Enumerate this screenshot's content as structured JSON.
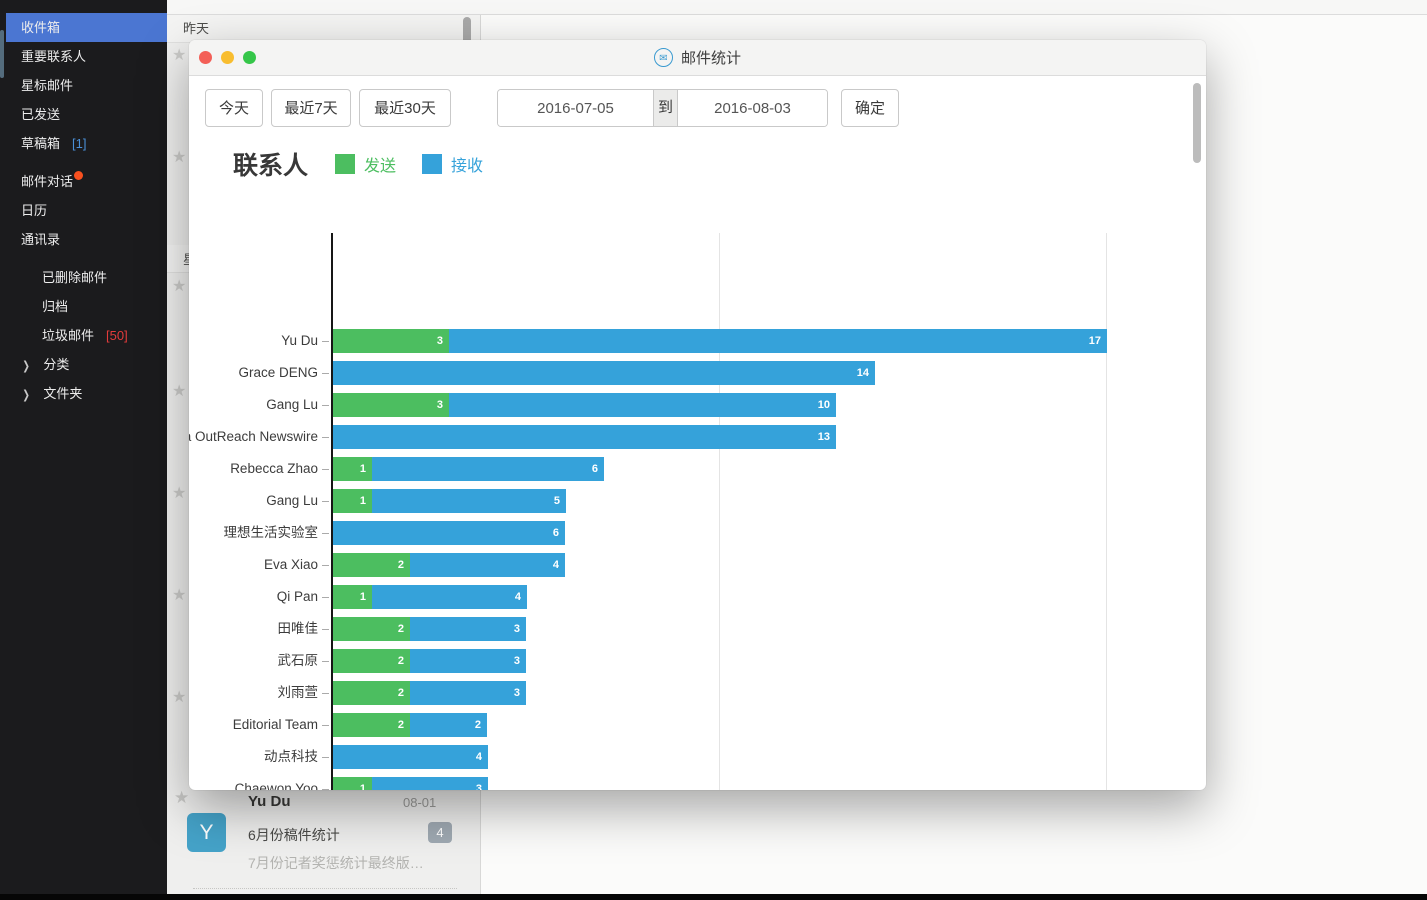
{
  "sidebar": {
    "selected_color": "#4B76D2",
    "groups": [
      {
        "items": [
          {
            "label": "收件箱",
            "selected": true
          },
          {
            "label": "重要联系人"
          },
          {
            "label": "星标邮件"
          },
          {
            "label": "已发送"
          },
          {
            "label": "草稿箱",
            "count": "[1]",
            "count_type": "info"
          }
        ]
      },
      {
        "items": [
          {
            "label": "邮件对话",
            "dot": true
          },
          {
            "label": "日历"
          },
          {
            "label": "通讯录"
          }
        ]
      },
      {
        "items": [
          {
            "label": "已删除邮件",
            "indent": true
          },
          {
            "label": "归档",
            "indent": true
          },
          {
            "label": "垃圾邮件",
            "count": "[50]",
            "count_type": "alert",
            "indent": true
          },
          {
            "label": "分类",
            "chevron": true
          },
          {
            "label": "文件夹",
            "chevron": true
          }
        ]
      }
    ]
  },
  "mail_list": {
    "group_header_1": "昨天",
    "group_header_2": "星",
    "bottom_item": {
      "sender": "Yu Du",
      "date": "08-01",
      "subject": "6月份稿件统计",
      "badge": "4",
      "preview": "7月份记者奖惩统计最终版…",
      "avatar_letter": "Y"
    }
  },
  "dialog": {
    "title": "邮件统计",
    "title_icon": "✉",
    "toolbar": {
      "today": "今天",
      "last7": "最近7天",
      "last30": "最近30天",
      "date_from": "2016-07-05",
      "to_label": "到",
      "date_to": "2016-08-03",
      "confirm": "确定"
    }
  },
  "chart_data": {
    "type": "bar",
    "orientation": "horizontal",
    "title": "联系人",
    "legend": [
      {
        "label": "发送",
        "color": "#4CBE60"
      },
      {
        "label": "接收",
        "color": "#35A2DA"
      }
    ],
    "legend_position": "top",
    "grid": true,
    "xlim": [
      0,
      20
    ],
    "gridline_values": [
      10,
      20
    ],
    "categories": [
      "Yu Du",
      "Grace DENG",
      "Gang Lu",
      "a OutReach Newswire",
      "Rebecca Zhao",
      "Gang Lu",
      "理想生活实验室",
      "Eva Xiao",
      "Qi Pan",
      "田唯佳",
      "武石原",
      "刘雨萱",
      "Editorial Team",
      "动点科技",
      "Chaewon Yoo"
    ],
    "series": [
      {
        "name": "发送",
        "color": "#4CBE60",
        "values": [
          3,
          0,
          3,
          0,
          1,
          1,
          0,
          2,
          1,
          2,
          2,
          2,
          2,
          0,
          1
        ]
      },
      {
        "name": "接收",
        "color": "#35A2DA",
        "values": [
          17,
          14,
          10,
          13,
          6,
          5,
          6,
          4,
          4,
          3,
          3,
          3,
          2,
          4,
          3
        ]
      }
    ]
  },
  "colors": {
    "bar_send": "#4CBE60",
    "bar_receive": "#35A2DA",
    "sidebar_selected": "#4B76D2",
    "badge_gray": "#9fa9b2",
    "trash_count_red": "#e23b3b",
    "draft_count_blue": "#4a8fd6"
  }
}
